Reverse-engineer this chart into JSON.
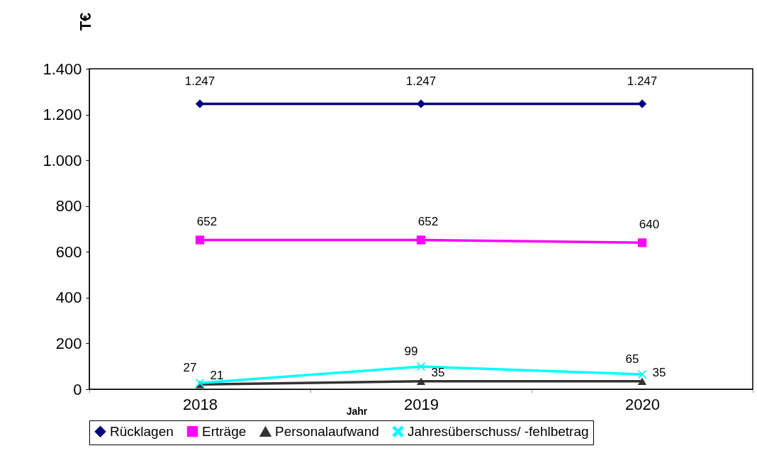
{
  "chart_data": {
    "type": "line",
    "xlabel": "Jahr",
    "ylabel": "T€",
    "categories": [
      "2018",
      "2019",
      "2020"
    ],
    "series": [
      {
        "name": "Rücklagen",
        "color": "#000080",
        "marker": "diamond",
        "values": [
          1247,
          1247,
          1247
        ],
        "value_labels": [
          "1.247",
          "1.247",
          "1.247"
        ]
      },
      {
        "name": "Erträge",
        "color": "#ff00ff",
        "marker": "square",
        "values": [
          652,
          652,
          640
        ],
        "value_labels": [
          "652",
          "652",
          "640"
        ]
      },
      {
        "name": "Personalaufwand",
        "color": "#333333",
        "marker": "triangle",
        "values": [
          21,
          35,
          35
        ],
        "value_labels": [
          "21",
          "35",
          "35"
        ]
      },
      {
        "name": "Jahresüberschuss/ -fehlbetrag",
        "color": "#00ffff",
        "marker": "cross",
        "values": [
          27,
          99,
          65
        ],
        "value_labels": [
          "27",
          "99",
          "65"
        ]
      }
    ],
    "ylim": [
      0,
      1400
    ],
    "yticks": [
      0,
      {
        "value": 200,
        "label": "200"
      },
      {
        "value": 400,
        "label": "400"
      },
      {
        "value": 600,
        "label": "600"
      },
      {
        "value": 800,
        "label": "800"
      },
      {
        "value": 1000,
        "label": "1.000"
      },
      {
        "value": 1200,
        "label": "1.200"
      },
      {
        "value": 1400,
        "label": "1.400"
      }
    ],
    "grid": false,
    "legend": "bottom",
    "line_style": "solid"
  }
}
